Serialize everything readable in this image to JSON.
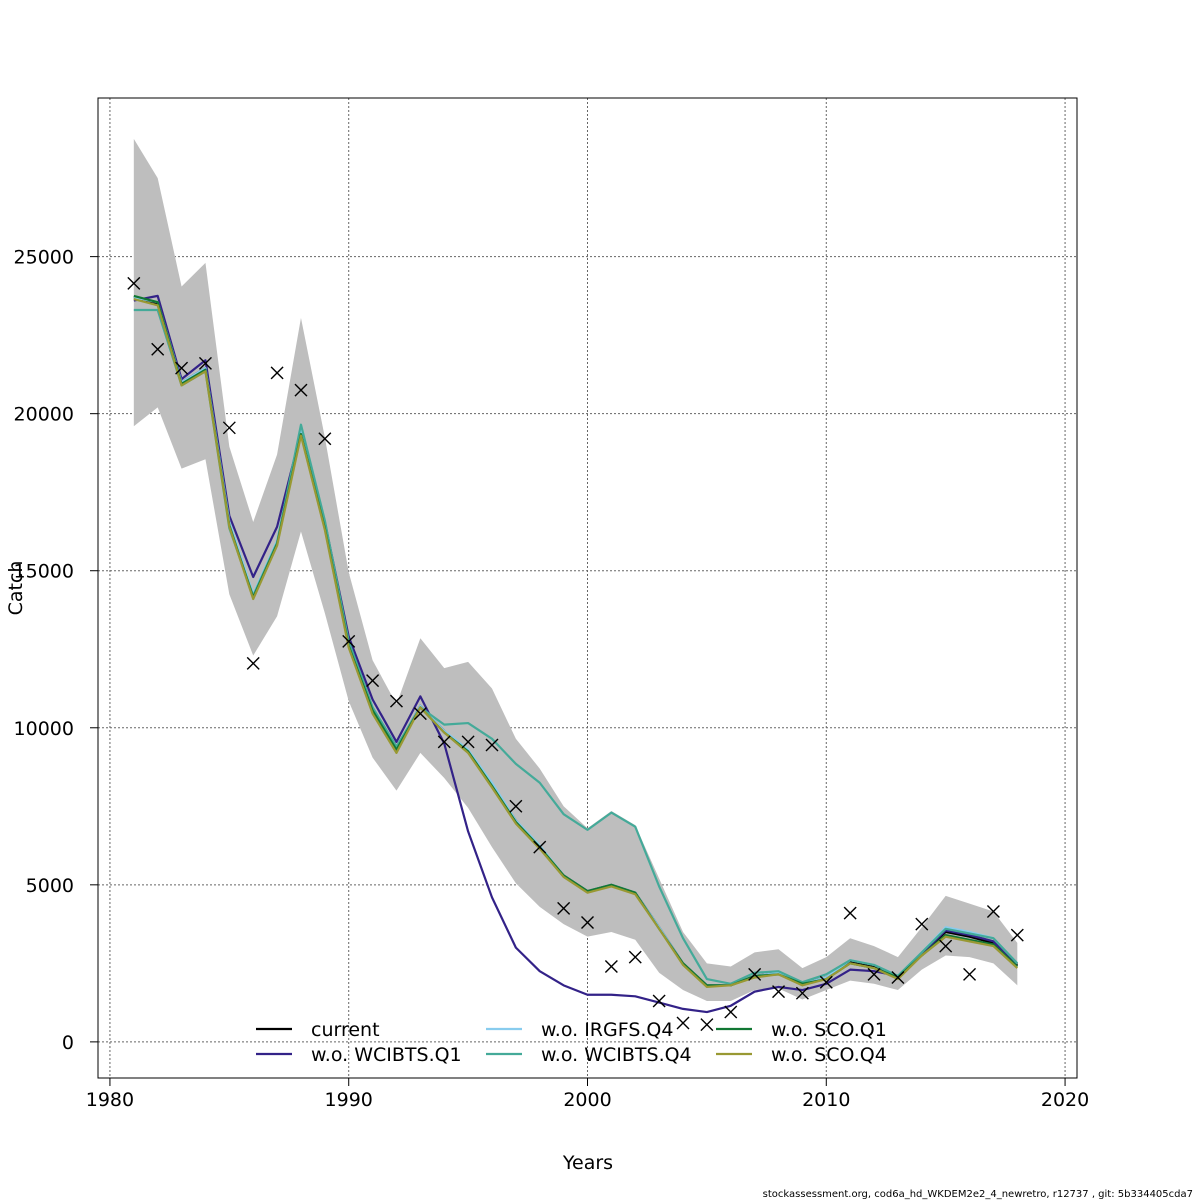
{
  "chart_data": {
    "type": "line",
    "title": "",
    "xlabel": "Years",
    "ylabel": "Catch",
    "xlim": [
      1979.5,
      2020.5
    ],
    "ylim": [
      -1150,
      30050
    ],
    "xticks": [
      1980,
      1990,
      2000,
      2010,
      2020
    ],
    "yticks": [
      0,
      5000,
      10000,
      15000,
      20000,
      25000
    ],
    "grid": true,
    "legend_position": "bottom",
    "x": [
      1981,
      1982,
      1983,
      1984,
      1985,
      1986,
      1987,
      1988,
      1989,
      1990,
      1991,
      1992,
      1993,
      1994,
      1995,
      1996,
      1997,
      1998,
      1999,
      2000,
      2001,
      2002,
      2003,
      2004,
      2005,
      2006,
      2007,
      2008,
      2009,
      2010,
      2011,
      2012,
      2013,
      2014,
      2015,
      2016,
      2017,
      2018
    ],
    "confidence_band": {
      "color": "#bebebe",
      "upper": [
        28750,
        27500,
        24050,
        24800,
        18950,
        16550,
        18700,
        23050,
        19250,
        14950,
        12150,
        10750,
        12850,
        11900,
        12100,
        11250,
        9650,
        8700,
        7500,
        6800,
        7350,
        6900,
        5200,
        3500,
        2500,
        2400,
        2850,
        2950,
        2350,
        2700,
        3300,
        3050,
        2700,
        3650,
        4650,
        4400,
        4150,
        3150
      ],
      "lower": [
        19600,
        20200,
        18250,
        18550,
        14250,
        12300,
        13550,
        16250,
        13650,
        10850,
        9050,
        8000,
        9200,
        8400,
        7450,
        6200,
        5050,
        4300,
        3750,
        3350,
        3500,
        3250,
        2200,
        1650,
        1300,
        1300,
        1650,
        1700,
        1350,
        1650,
        1950,
        1850,
        1650,
        2300,
        2750,
        2700,
        2500,
        1800
      ]
    },
    "observations": {
      "marker": "x",
      "values": [
        24150,
        22050,
        21450,
        21600,
        19550,
        12050,
        21300,
        20750,
        19200,
        12750,
        11500,
        10850,
        10450,
        9550,
        9550,
        9450,
        7500,
        6200,
        4250,
        3800,
        2400,
        2700,
        1300,
        600,
        550,
        950,
        2150,
        1600,
        1550,
        1900,
        4100,
        2150,
        2050,
        3750,
        3050,
        2150,
        4150,
        3400
      ]
    },
    "series": [
      {
        "name": "current",
        "color": "#000000",
        "style": "solid",
        "values": [
          23700,
          23500,
          21000,
          21450,
          16500,
          14200,
          15900,
          19400,
          16400,
          12650,
          10600,
          9350,
          10700,
          9900,
          9250,
          8200,
          7050,
          6200,
          5300,
          4800,
          5000,
          4750,
          3650,
          2500,
          1800,
          1800,
          2100,
          2200,
          1850,
          2050,
          2550,
          2400,
          2050,
          2800,
          3500,
          3350,
          3150,
          2450
        ]
      },
      {
        "name": "w.o. WCIBTS.Q1",
        "color": "#332288",
        "style": "solid",
        "values": [
          23600,
          23750,
          21100,
          21700,
          16750,
          14800,
          16400,
          19400,
          16550,
          12900,
          10900,
          9550,
          11000,
          9500,
          6700,
          4600,
          3000,
          2250,
          1800,
          1500,
          1500,
          1450,
          1250,
          1050,
          950,
          1150,
          1600,
          1750,
          1650,
          1850,
          2300,
          2250,
          2100,
          2800,
          3550,
          3400,
          3200,
          2400
        ]
      },
      {
        "name": "w.o. IRGFS.Q4",
        "color": "#88ccee",
        "style": "solid",
        "values": [
          23700,
          23550,
          21000,
          21450,
          16550,
          14250,
          15950,
          19450,
          16450,
          12700,
          10650,
          9350,
          10700,
          9900,
          9300,
          8250,
          7050,
          6250,
          5300,
          4800,
          5000,
          4750,
          3650,
          2500,
          1800,
          1800,
          2100,
          2200,
          1850,
          2050,
          2600,
          2450,
          2100,
          2850,
          3650,
          3500,
          3300,
          2500
        ]
      },
      {
        "name": "w.o. WCIBTS.Q4",
        "color": "#44aa99",
        "style": "solid",
        "values": [
          23300,
          23300,
          20900,
          21350,
          16350,
          14200,
          15900,
          19650,
          16600,
          12750,
          10650,
          9400,
          10650,
          10100,
          10150,
          9650,
          8850,
          8250,
          7250,
          6750,
          7300,
          6850,
          4950,
          3300,
          2000,
          1850,
          2200,
          2250,
          1900,
          2150,
          2600,
          2450,
          2100,
          2850,
          3600,
          3450,
          3300,
          2500
        ]
      },
      {
        "name": "w.o. SCO.Q1",
        "color": "#117733",
        "style": "solid",
        "values": [
          23750,
          23550,
          20950,
          21400,
          16450,
          14150,
          15850,
          19350,
          16350,
          12600,
          10550,
          9300,
          10650,
          9850,
          9250,
          8150,
          7000,
          6200,
          5300,
          4800,
          5000,
          4750,
          3600,
          2500,
          1800,
          1800,
          2100,
          2150,
          1850,
          2000,
          2500,
          2350,
          2050,
          2750,
          3400,
          3250,
          3100,
          2400
        ]
      },
      {
        "name": "w.o. SCO.Q4",
        "color": "#999933",
        "style": "solid",
        "values": [
          23650,
          23450,
          20900,
          21350,
          16400,
          14100,
          15800,
          19300,
          16300,
          12550,
          10450,
          9200,
          10650,
          9850,
          9200,
          8100,
          6950,
          6150,
          5250,
          4750,
          4950,
          4700,
          3600,
          2450,
          1750,
          1800,
          2050,
          2150,
          1800,
          2000,
          2500,
          2350,
          2000,
          2750,
          3350,
          3200,
          3050,
          2350
        ]
      }
    ],
    "legend": {
      "entries": [
        "current",
        "w.o. WCIBTS.Q1",
        "w.o. IRGFS.Q4",
        "w.o. WCIBTS.Q4",
        "w.o. SCO.Q1",
        "w.o. SCO.Q4"
      ]
    }
  },
  "footer": {
    "note": "stockassessment.org, cod6a_hd_WKDEM2e2_4_newretro, r12737 , git: 5b334405cda7"
  }
}
